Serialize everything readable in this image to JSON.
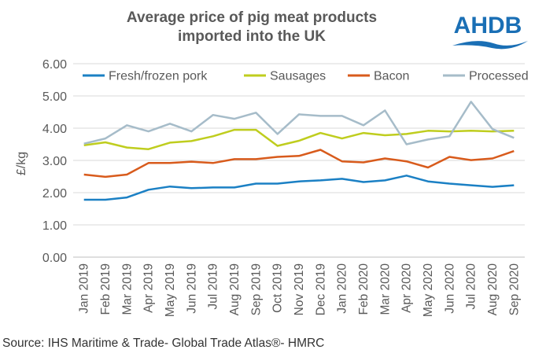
{
  "header": {
    "title_line1": "Average price of pig meat products",
    "title_line2": "imported into the UK",
    "logo_text": "AHDB"
  },
  "footer": {
    "source": "Source: IHS Maritime & Trade- Global Trade Atlas®- HMRC"
  },
  "colors": {
    "fresh": "#1b80c4",
    "sausages": "#bfcd1e",
    "bacon": "#d85b1c",
    "processed": "#a6bcc9",
    "grid": "#d9d9d9",
    "text": "#595959",
    "logo": "#1a6fb5"
  },
  "chart_data": {
    "type": "line",
    "ylabel": "£/kg",
    "xlabel": "",
    "ylim": [
      0,
      6
    ],
    "yticks": [
      "0.00",
      "1.00",
      "2.00",
      "3.00",
      "4.00",
      "5.00",
      "6.00"
    ],
    "grid": "horizontal",
    "legend_position": "top",
    "categories": [
      "Jan 2019",
      "Feb 2019",
      "Mar 2019",
      "Apr 2019",
      "May 2019",
      "Jun 2019",
      "Jul 2019",
      "Aug 2019",
      "Sep 2019",
      "Oct 2019",
      "Nov 2019",
      "Dec 2019",
      "Jan 2020",
      "Feb 2020",
      "Mar 2020",
      "Apr 2020",
      "May 2020",
      "Jun 2020",
      "Jul 2020",
      "Aug 2020",
      "Sep 2020"
    ],
    "series": [
      {
        "name": "Fresh/frozen pork",
        "key": "fresh",
        "values": [
          1.78,
          1.78,
          1.85,
          2.09,
          2.19,
          2.14,
          2.16,
          2.16,
          2.28,
          2.28,
          2.35,
          2.38,
          2.43,
          2.33,
          2.38,
          2.53,
          2.35,
          2.28,
          2.23,
          2.18,
          2.23
        ]
      },
      {
        "name": "Sausages",
        "key": "sausages",
        "values": [
          3.47,
          3.56,
          3.4,
          3.35,
          3.55,
          3.6,
          3.75,
          3.95,
          3.95,
          3.45,
          3.61,
          3.85,
          3.68,
          3.85,
          3.78,
          3.82,
          3.92,
          3.9,
          3.92,
          3.9,
          3.92
        ]
      },
      {
        "name": "Bacon",
        "key": "bacon",
        "values": [
          2.56,
          2.49,
          2.56,
          2.92,
          2.92,
          2.96,
          2.92,
          3.04,
          3.04,
          3.11,
          3.14,
          3.33,
          2.97,
          2.94,
          3.06,
          2.97,
          2.78,
          3.11,
          3.01,
          3.06,
          3.29
        ]
      },
      {
        "name": "Processed",
        "key": "processed",
        "values": [
          3.52,
          3.68,
          4.09,
          3.9,
          4.14,
          3.9,
          4.41,
          4.29,
          4.48,
          3.82,
          4.43,
          4.38,
          4.38,
          4.09,
          4.55,
          3.5,
          3.65,
          3.75,
          4.82,
          3.97,
          3.7
        ]
      }
    ]
  }
}
